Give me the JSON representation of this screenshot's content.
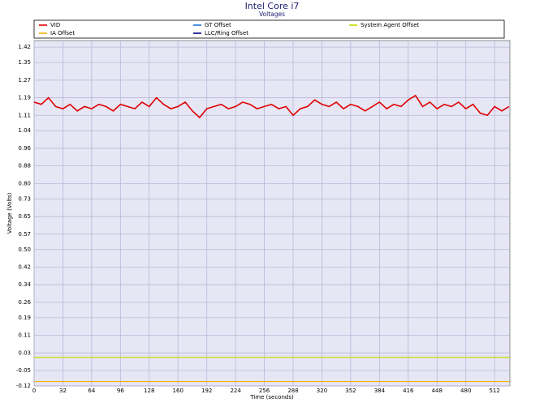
{
  "chart_data": {
    "type": "line",
    "title": "Intel Core i7",
    "subtitle": "Voltages",
    "x_label": "Time (seconds)",
    "y_label": "Voltage (Volts)",
    "series": [
      {
        "name": "VID",
        "color": "#e00000",
        "x": [
          0,
          8,
          16,
          24,
          32,
          40,
          48,
          56,
          64,
          72,
          80,
          88,
          96,
          104,
          112,
          120,
          128,
          136,
          144,
          152,
          160,
          168,
          176,
          184,
          192,
          200,
          208,
          216,
          224,
          232,
          240,
          248,
          256,
          264,
          272,
          280,
          288,
          296,
          304,
          312,
          320,
          328,
          336,
          344,
          352,
          360,
          368,
          376,
          384,
          392,
          400,
          408,
          416,
          424,
          432,
          440,
          448,
          456,
          464,
          472,
          480,
          488,
          496,
          504,
          512,
          520,
          528
        ],
        "values": [
          1.17,
          1.16,
          1.19,
          1.15,
          1.14,
          1.16,
          1.13,
          1.15,
          1.14,
          1.16,
          1.15,
          1.13,
          1.16,
          1.15,
          1.14,
          1.17,
          1.15,
          1.19,
          1.16,
          1.14,
          1.15,
          1.17,
          1.13,
          1.1,
          1.14,
          1.15,
          1.16,
          1.14,
          1.15,
          1.17,
          1.16,
          1.14,
          1.15,
          1.16,
          1.14,
          1.15,
          1.11,
          1.14,
          1.15,
          1.18,
          1.16,
          1.15,
          1.17,
          1.14,
          1.16,
          1.15,
          1.13,
          1.15,
          1.17,
          1.14,
          1.16,
          1.15,
          1.18,
          1.2,
          1.15,
          1.17,
          1.14,
          1.16,
          1.15,
          1.17,
          1.14,
          1.16,
          1.12,
          1.11,
          1.15,
          1.13,
          1.15
        ]
      },
      {
        "name": "GT Offset",
        "color": "#1f77d0",
        "x": [
          0,
          529
        ],
        "values": [
          null,
          null
        ]
      },
      {
        "name": "System Agent Offset",
        "color": "#c8d800",
        "x": [
          0,
          529
        ],
        "values": [
          0.01,
          0.01
        ]
      },
      {
        "name": "IA Offset",
        "color": "#f0b000",
        "x": [
          0,
          529
        ],
        "values": [
          -0.1,
          -0.1
        ]
      },
      {
        "name": "LLC/Ring Offset",
        "color": "#000080",
        "x": [
          0,
          529
        ],
        "values": [
          null,
          null
        ]
      }
    ],
    "xlim": [
      0,
      529
    ],
    "xticks": [
      0,
      32,
      64,
      96,
      128,
      160,
      192,
      224,
      256,
      288,
      320,
      352,
      384,
      416,
      448,
      480,
      512
    ],
    "ylim": [
      -0.12,
      1.45
    ],
    "yticks": [
      1.42,
      1.35,
      1.27,
      1.19,
      1.11,
      1.04,
      0.96,
      0.88,
      {
        "value": 0.8,
        "label": "0.80"
      },
      0.73,
      0.65,
      0.57,
      {
        "value": 0.5,
        "label": "0.50"
      },
      0.42,
      0.34,
      0.26,
      0.19,
      0.11,
      0.03,
      -0.05,
      -0.12
    ],
    "grid": true
  }
}
